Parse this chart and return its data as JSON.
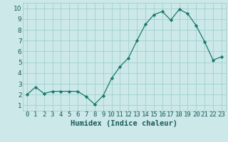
{
  "x": [
    0,
    1,
    2,
    3,
    4,
    5,
    6,
    7,
    8,
    9,
    10,
    11,
    12,
    13,
    14,
    15,
    16,
    17,
    18,
    19,
    20,
    21,
    22,
    23
  ],
  "y": [
    2.0,
    2.7,
    2.1,
    2.3,
    2.3,
    2.3,
    2.3,
    1.8,
    1.1,
    1.9,
    3.5,
    4.6,
    5.4,
    7.0,
    8.5,
    9.4,
    9.7,
    8.9,
    9.9,
    9.5,
    8.4,
    6.9,
    5.2,
    5.5
  ],
  "xlabel": "Humidex (Indice chaleur)",
  "xlim": [
    -0.5,
    23.5
  ],
  "ylim": [
    0.5,
    10.5
  ],
  "yticks": [
    1,
    2,
    3,
    4,
    5,
    6,
    7,
    8,
    9,
    10
  ],
  "xticks": [
    0,
    1,
    2,
    3,
    4,
    5,
    6,
    7,
    8,
    9,
    10,
    11,
    12,
    13,
    14,
    15,
    16,
    17,
    18,
    19,
    20,
    21,
    22,
    23
  ],
  "line_color": "#1a7a6e",
  "marker_color": "#1a7a6e",
  "bg_color": "#cce8e8",
  "grid_color": "#99cccc",
  "tick_label_fontsize": 6.5,
  "xlabel_fontsize": 7.5
}
